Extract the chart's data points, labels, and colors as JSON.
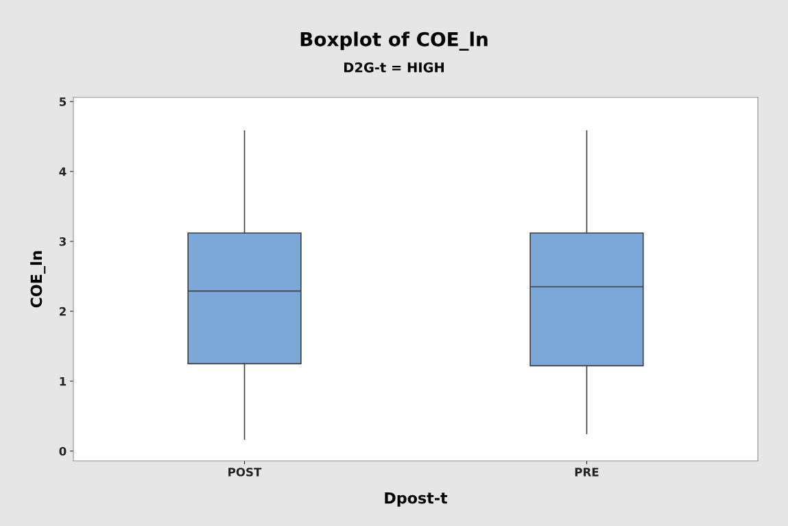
{
  "chart_data": {
    "type": "box",
    "title": "Boxplot of COE_ln",
    "subtitle": "D2G-t = HIGH",
    "xlabel": "Dpost-t",
    "ylabel": "COE_ln",
    "categories": [
      "POST",
      "PRE"
    ],
    "boxes": [
      {
        "low": 0.17,
        "q1": 1.25,
        "median": 2.29,
        "q3": 3.12,
        "high": 4.58
      },
      {
        "low": 0.25,
        "q1": 1.22,
        "median": 2.35,
        "q3": 3.12,
        "high": 4.58
      }
    ],
    "color": "#7ba7d9",
    "ylim": [
      -0.14,
      5.06
    ],
    "yticks": [
      0,
      1,
      2,
      3,
      4,
      5
    ],
    "grid": false,
    "legend": false
  }
}
